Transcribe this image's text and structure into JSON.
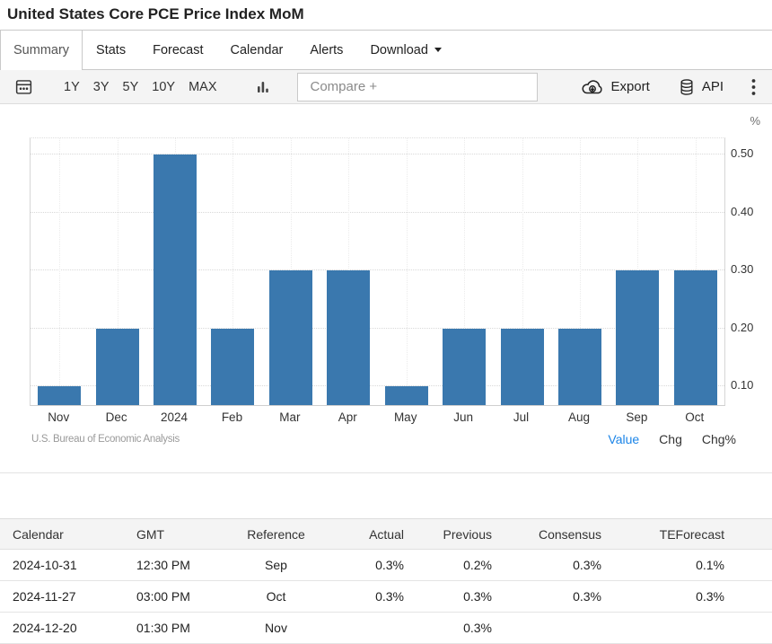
{
  "page": {
    "title": "United States Core PCE Price Index MoM"
  },
  "tabs": [
    {
      "label": "Summary",
      "active": true
    },
    {
      "label": "Stats"
    },
    {
      "label": "Forecast"
    },
    {
      "label": "Calendar"
    },
    {
      "label": "Alerts"
    },
    {
      "label": "Download",
      "has_caret": true
    }
  ],
  "toolbar": {
    "ranges": [
      "1Y",
      "3Y",
      "5Y",
      "10Y",
      "MAX"
    ],
    "compare_placeholder": "Compare +",
    "export_label": "Export",
    "api_label": "API",
    "icons": {
      "left": "calendar-icon",
      "chart_type": "column-chart-icon",
      "export": "cloud-download-icon",
      "api": "database-icon",
      "menu": "kebab-menu-icon"
    }
  },
  "chart_data": {
    "type": "bar",
    "title": "United States Core PCE Price Index MoM",
    "unit_label": "%",
    "categories": [
      "Nov",
      "Dec",
      "2024",
      "Feb",
      "Mar",
      "Apr",
      "May",
      "Jun",
      "Jul",
      "Aug",
      "Sep",
      "Oct"
    ],
    "values": [
      0.1,
      0.2,
      0.5,
      0.2,
      0.3,
      0.3,
      0.1,
      0.2,
      0.2,
      0.2,
      0.3,
      0.3
    ],
    "yticks": [
      0.1,
      0.2,
      0.3,
      0.4,
      0.5
    ],
    "ylim": [
      0.068,
      0.528
    ],
    "grid": "dotted",
    "bar_color": "#3a78ae",
    "source": "U.S. Bureau of Economic Analysis",
    "modes": [
      {
        "label": "Value",
        "active": true
      },
      {
        "label": "Chg"
      },
      {
        "label": "Chg%"
      }
    ]
  },
  "calendar_table": {
    "headers": [
      "Calendar",
      "GMT",
      "Reference",
      "Actual",
      "Previous",
      "Consensus",
      "TEForecast"
    ],
    "rows": [
      {
        "date": "2024-10-31",
        "gmt": "12:30 PM",
        "reference": "Sep",
        "actual": "0.3%",
        "previous": "0.2%",
        "consensus": "0.3%",
        "teforecast": "0.1%"
      },
      {
        "date": "2024-11-27",
        "gmt": "03:00 PM",
        "reference": "Oct",
        "actual": "0.3%",
        "previous": "0.3%",
        "consensus": "0.3%",
        "teforecast": "0.3%"
      },
      {
        "date": "2024-12-20",
        "gmt": "01:30 PM",
        "reference": "Nov",
        "actual": "",
        "previous": "0.3%",
        "consensus": "",
        "teforecast": ""
      }
    ]
  },
  "colors": {
    "accent_blue": "#1b84e7",
    "bar_blue": "#3a78ae",
    "toolbar_bg": "#f4f4f4"
  }
}
